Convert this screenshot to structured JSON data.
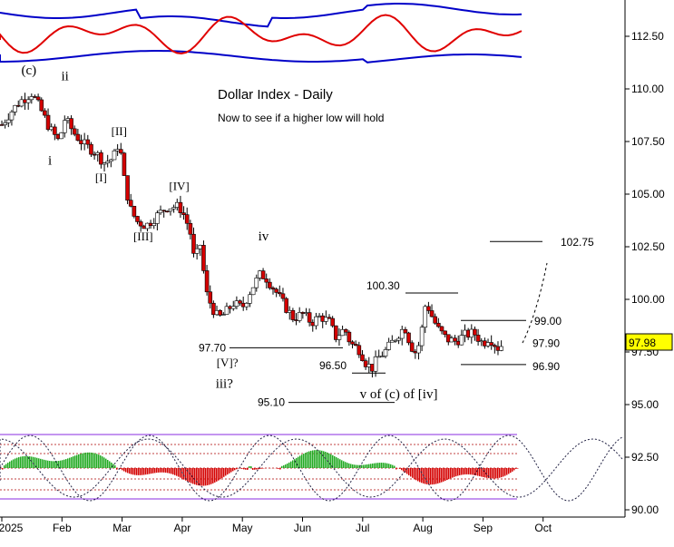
{
  "chart_data": {
    "type": "candlestick",
    "title": "Dollar Index - Daily",
    "subtitle": "Now to see if a higher low will hold",
    "x_ticks": [
      "2025",
      "Feb",
      "Mar",
      "Apr",
      "May",
      "Jun",
      "Jul",
      "Aug",
      "Sep",
      "Oct"
    ],
    "y_ticks": [
      "112.50",
      "110.00",
      "107.50",
      "105.00",
      "102.50",
      "100.00",
      "97.50",
      "95.00",
      "92.50",
      "90.00"
    ],
    "ylim": [
      89.9,
      114.5
    ],
    "last_price": "97.98",
    "wave_labels": [
      {
        "text": "(c)",
        "month": 0.45,
        "value": 110.7
      },
      {
        "text": "ii",
        "month": 1.05,
        "value": 110.4
      },
      {
        "text": "i",
        "month": 0.8,
        "value": 106.4
      },
      {
        "text": "[II]",
        "month": 1.95,
        "value": 107.8
      },
      {
        "text": "[I]",
        "month": 1.65,
        "value": 105.6
      },
      {
        "text": "[IV]",
        "month": 2.95,
        "value": 105.2
      },
      {
        "text": "[III]",
        "month": 2.35,
        "value": 102.8
      },
      {
        "text": "iv",
        "month": 4.35,
        "value": 102.8
      },
      {
        "text": "[V]?",
        "month": 3.75,
        "value": 96.8
      },
      {
        "text": "iii?",
        "month": 3.7,
        "value": 95.8
      },
      {
        "text": "v of (c) of [iv]",
        "month": 6.6,
        "value": 95.3
      }
    ],
    "levels": [
      {
        "label": "102.75",
        "value": 102.75
      },
      {
        "label": "100.30",
        "value": 100.3
      },
      {
        "label": "99.00",
        "value": 99.0
      },
      {
        "label": "97.90",
        "value": 97.9
      },
      {
        "label": "96.90",
        "value": 96.9
      },
      {
        "label": "97.70",
        "value": 97.7
      },
      {
        "label": "96.50",
        "value": 96.5
      },
      {
        "label": "95.10",
        "value": 95.1
      }
    ],
    "price_path": [
      {
        "m": 0.0,
        "v": 108.3
      },
      {
        "m": 0.15,
        "v": 108.9
      },
      {
        "m": 0.3,
        "v": 109.4
      },
      {
        "m": 0.5,
        "v": 109.8
      },
      {
        "m": 0.65,
        "v": 109.0
      },
      {
        "m": 0.8,
        "v": 108.1
      },
      {
        "m": 0.95,
        "v": 107.5
      },
      {
        "m": 1.05,
        "v": 108.6
      },
      {
        "m": 1.2,
        "v": 107.9
      },
      {
        "m": 1.35,
        "v": 107.4
      },
      {
        "m": 1.55,
        "v": 107.0
      },
      {
        "m": 1.7,
        "v": 106.5
      },
      {
        "m": 1.85,
        "v": 106.7
      },
      {
        "m": 1.95,
        "v": 107.5
      },
      {
        "m": 2.05,
        "v": 105.4
      },
      {
        "m": 2.15,
        "v": 104.2
      },
      {
        "m": 2.25,
        "v": 103.7
      },
      {
        "m": 2.4,
        "v": 103.5
      },
      {
        "m": 2.55,
        "v": 103.9
      },
      {
        "m": 2.75,
        "v": 104.4
      },
      {
        "m": 2.95,
        "v": 104.4
      },
      {
        "m": 3.05,
        "v": 103.9
      },
      {
        "m": 3.15,
        "v": 103.0
      },
      {
        "m": 3.2,
        "v": 101.8
      },
      {
        "m": 3.3,
        "v": 102.6
      },
      {
        "m": 3.4,
        "v": 100.3
      },
      {
        "m": 3.5,
        "v": 99.6
      },
      {
        "m": 3.6,
        "v": 99.1
      },
      {
        "m": 3.7,
        "v": 99.3
      },
      {
        "m": 3.85,
        "v": 99.8
      },
      {
        "m": 4.0,
        "v": 99.6
      },
      {
        "m": 4.15,
        "v": 100.5
      },
      {
        "m": 4.3,
        "v": 101.2
      },
      {
        "m": 4.4,
        "v": 101.0
      },
      {
        "m": 4.55,
        "v": 100.4
      },
      {
        "m": 4.7,
        "v": 99.7
      },
      {
        "m": 4.85,
        "v": 99.1
      },
      {
        "m": 5.0,
        "v": 99.3
      },
      {
        "m": 5.15,
        "v": 98.9
      },
      {
        "m": 5.3,
        "v": 99.2
      },
      {
        "m": 5.45,
        "v": 98.9
      },
      {
        "m": 5.55,
        "v": 98.2
      },
      {
        "m": 5.7,
        "v": 98.6
      },
      {
        "m": 5.8,
        "v": 97.9
      },
      {
        "m": 5.95,
        "v": 97.6
      },
      {
        "m": 6.05,
        "v": 97.0
      },
      {
        "m": 6.15,
        "v": 96.7
      },
      {
        "m": 6.25,
        "v": 97.2
      },
      {
        "m": 6.4,
        "v": 97.6
      },
      {
        "m": 6.55,
        "v": 98.2
      },
      {
        "m": 6.7,
        "v": 98.7
      },
      {
        "m": 6.8,
        "v": 97.8
      },
      {
        "m": 6.9,
        "v": 97.4
      },
      {
        "m": 7.0,
        "v": 98.8
      },
      {
        "m": 7.05,
        "v": 99.9
      },
      {
        "m": 7.15,
        "v": 99.2
      },
      {
        "m": 7.25,
        "v": 98.6
      },
      {
        "m": 7.4,
        "v": 98.1
      },
      {
        "m": 7.55,
        "v": 98.0
      },
      {
        "m": 7.7,
        "v": 98.3
      },
      {
        "m": 7.85,
        "v": 98.4
      },
      {
        "m": 8.0,
        "v": 97.9
      },
      {
        "m": 8.1,
        "v": 98.2
      },
      {
        "m": 8.25,
        "v": 97.7
      },
      {
        "m": 8.35,
        "v": 97.9
      }
    ],
    "grid": false
  },
  "colors": {
    "up": "#ffffff",
    "down": "#d40000",
    "band": "#0000c8",
    "oscillator": "#e00000",
    "histogram_up": "#22aa22",
    "histogram_down": "#d40000",
    "cycle_line": "#222244",
    "price_box_bg": "#ffff00",
    "level_line": "#000000",
    "purple_line": "#8a2be2"
  }
}
